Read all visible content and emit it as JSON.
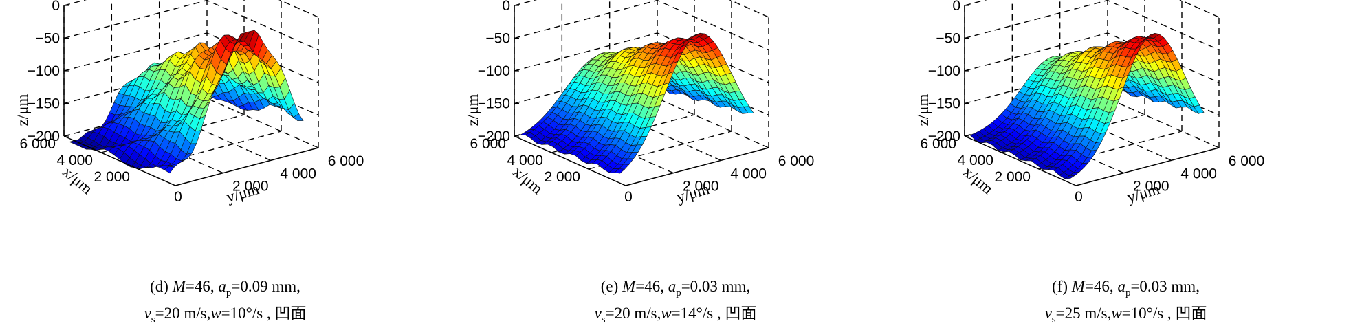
{
  "chart_data": [
    {
      "type": "surface",
      "panel_label": "(d)",
      "caption": {
        "line1": {
          "label": "(d) ",
          "M_name": "M",
          "M_value": "=46, ",
          "ap_name": "a",
          "ap_sub": "p",
          "ap_value": "=0.09 mm,"
        },
        "line2": {
          "vs_name": "v",
          "vs_sub": "s",
          "vs_value": "=20 m/s,",
          "w_name": "w",
          "w_value": "=10°/s ,",
          "suffix": " 凹面"
        }
      },
      "zlabel": "z/μm",
      "xlabel": "x/μm",
      "ylabel": "y/μm",
      "z_ticks": [
        "0",
        "−50",
        "−100",
        "−150",
        "−200"
      ],
      "x_ticks": [
        "0",
        "2 000",
        "4 000",
        "6 000"
      ],
      "y_ticks": [
        "2 000",
        "4 000",
        "6 000"
      ],
      "zlim": [
        -200,
        0
      ],
      "xlim": [
        0,
        6000
      ],
      "ylim": [
        0,
        6000
      ],
      "surface": {
        "description_peak_z": -10,
        "valley_z": -200,
        "shape": "ridge with rough, wavy top edge"
      },
      "colormap": "jet"
    },
    {
      "type": "surface",
      "panel_label": "(e)",
      "caption": {
        "line1": {
          "label": "(e) ",
          "M_name": "M",
          "M_value": "=46, ",
          "ap_name": "a",
          "ap_sub": "p",
          "ap_value": "=0.03 mm,"
        },
        "line2": {
          "vs_name": "v",
          "vs_sub": "s",
          "vs_value": "=20 m/s,",
          "w_name": "w",
          "w_value": "=14°/s ,",
          "suffix": " 凹面"
        }
      },
      "zlabel": "z/μm",
      "xlabel": "x/μm",
      "ylabel": "y/μm",
      "z_ticks": [
        "0",
        "−50",
        "−100",
        "−150",
        "−200"
      ],
      "x_ticks": [
        "0",
        "2 000",
        "4 000",
        "6 000"
      ],
      "y_ticks": [
        "2 000",
        "4 000",
        "6 000"
      ],
      "zlim": [
        -200,
        0
      ],
      "xlim": [
        0,
        6000
      ],
      "ylim": [
        0,
        6000
      ],
      "colormap": "jet"
    },
    {
      "type": "surface",
      "panel_label": "(f)",
      "caption": {
        "line1": {
          "label": "(f) ",
          "M_name": "M",
          "M_value": "=46, ",
          "ap_name": "a",
          "ap_sub": "p",
          "ap_value": "=0.03 mm,"
        },
        "line2": {
          "vs_name": "v",
          "vs_sub": "s",
          "vs_value": "=25  m/s,",
          "w_name": "w",
          "w_value": "=10°/s ,",
          "suffix": " 凹面"
        }
      },
      "zlabel": "z/μm",
      "xlabel": "x/μm",
      "ylabel": "y/μm",
      "z_ticks": [
        "0",
        "−50",
        "−100",
        "−150",
        "−200"
      ],
      "x_ticks": [
        "0",
        "2 000",
        "4 000",
        "6 000"
      ],
      "y_ticks": [
        "2 000",
        "4 000",
        "6 000"
      ],
      "zlim": [
        -200,
        0
      ],
      "xlim": [
        0,
        6000
      ],
      "ylim": [
        0,
        6000
      ],
      "colormap": "jet"
    }
  ],
  "colors": {
    "grid": "#000000",
    "background": "#ffffff"
  }
}
